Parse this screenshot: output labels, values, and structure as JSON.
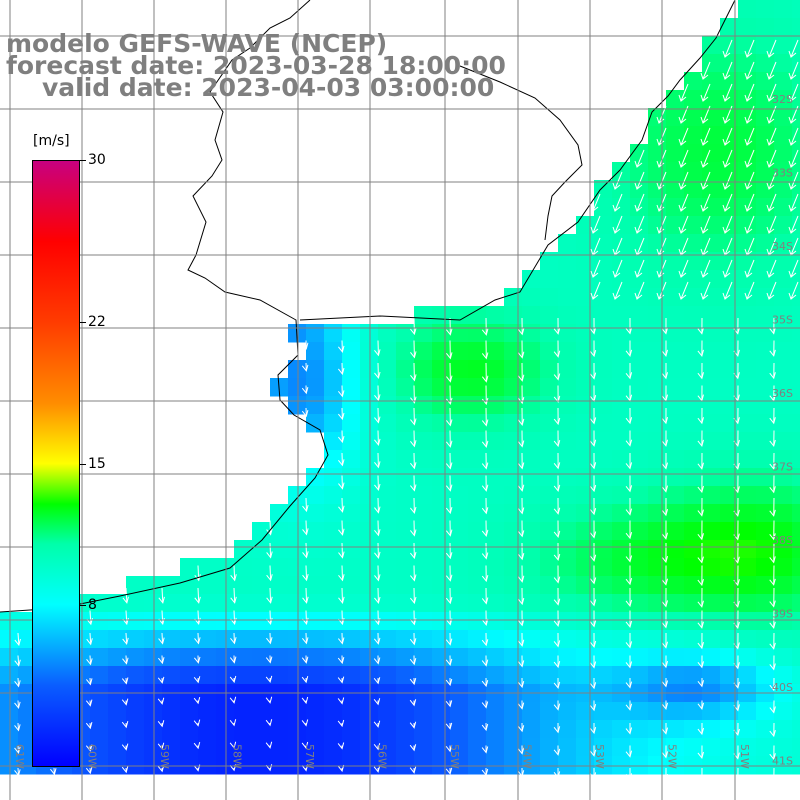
{
  "title": {
    "model": "modelo GEFS-WAVE (NCEP)",
    "forecast": "forecast date: 2023-03-28 18:00:00",
    "valid": "valid date: 2023-04-03 03:00:00"
  },
  "colorbar": {
    "unit": "[m/s]",
    "ticks": [
      "30",
      "22",
      "15",
      "8"
    ],
    "tick_values": [
      30,
      22,
      15,
      8
    ],
    "range": [
      0,
      30
    ],
    "colors": {
      "v0": "#0000ff",
      "v4": "#0a5dff",
      "v8": "#00ffff",
      "v11": "#00ffaa",
      "v13": "#00ff00",
      "v15": "#ffff00",
      "v18": "#ff8c00",
      "v22": "#ff3c00",
      "v26": "#ff0000",
      "v30": "#c80080"
    }
  },
  "lat_labels": [
    "32S",
    "33S",
    "34S",
    "35S",
    "36S",
    "37S",
    "38S",
    "39S",
    "40S",
    "41S"
  ],
  "lon_labels": [
    "61W",
    "60W",
    "59W",
    "58W",
    "57W",
    "56W",
    "55W",
    "54W",
    "53W",
    "52W",
    "51W"
  ],
  "map": {
    "field": "wind speed with direction arrows",
    "land_color": "#ffffff",
    "grid_color": "#808080",
    "arrow_color": "#ffffff"
  }
}
